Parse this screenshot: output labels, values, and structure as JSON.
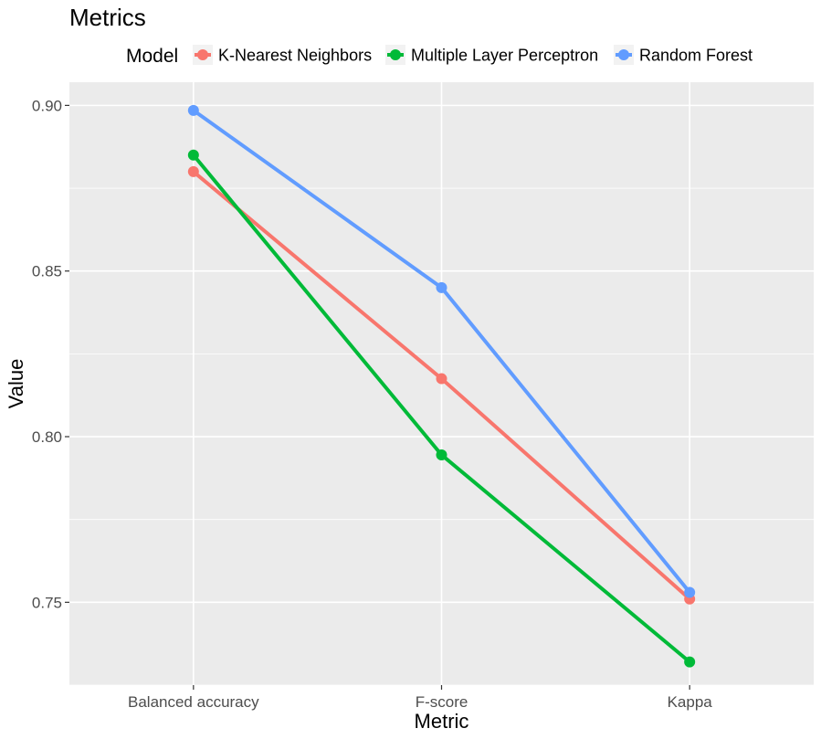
{
  "chart_data": {
    "type": "line",
    "title": "Metrics",
    "xlabel": "Metric",
    "ylabel": "Value",
    "categories": [
      "Balanced accuracy",
      "F-score",
      "Kappa"
    ],
    "ylim": [
      0.725,
      0.907
    ],
    "yticks": [
      0.75,
      0.8,
      0.85,
      0.9
    ],
    "ytick_labels": [
      "0.75",
      "0.80",
      "0.85",
      "0.90"
    ],
    "grid": true,
    "legend": {
      "title": "Model",
      "placement": "top"
    },
    "series": [
      {
        "name": "K-Nearest Neighbors",
        "color": "#F8766D",
        "values": [
          0.88,
          0.8175,
          0.751
        ]
      },
      {
        "name": "Multiple Layer Perceptron",
        "color": "#00BA38",
        "values": [
          0.885,
          0.7945,
          0.732
        ]
      },
      {
        "name": "Random Forest",
        "color": "#619CFF",
        "values": [
          0.8985,
          0.845,
          0.753
        ]
      }
    ]
  }
}
